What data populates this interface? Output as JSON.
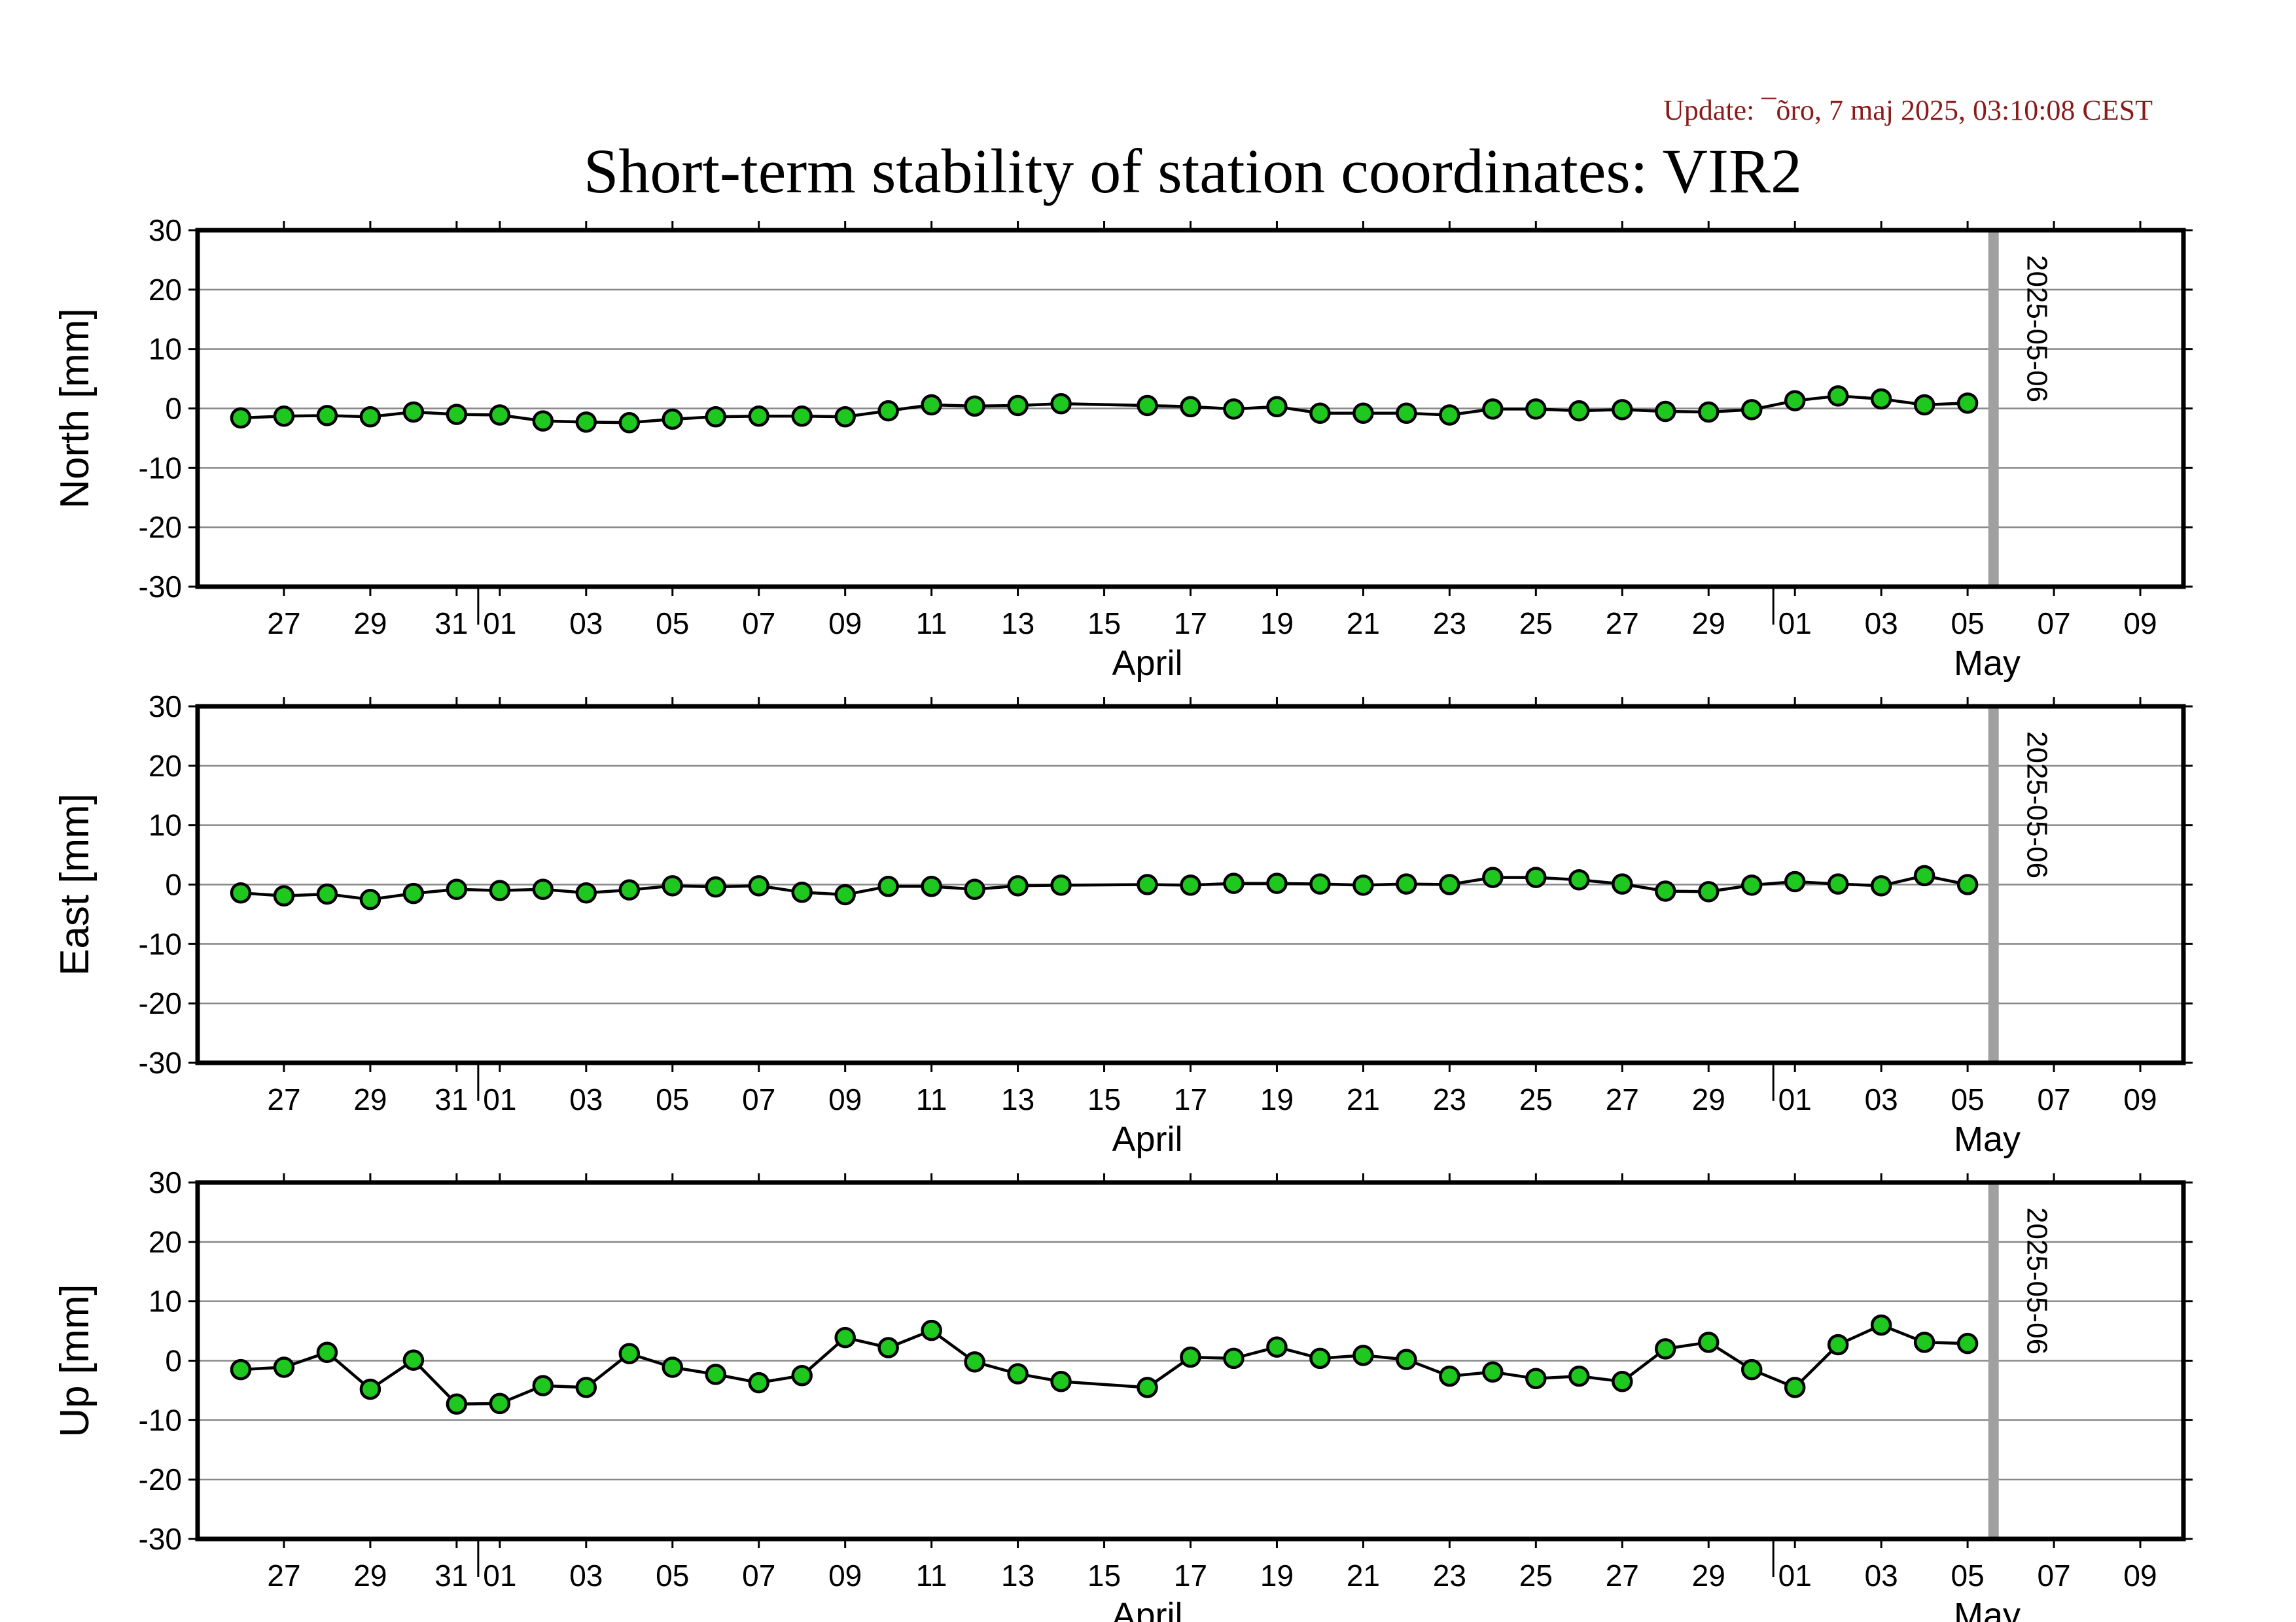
{
  "update_text": "Update: ¯õro, 7 maj 2025, 03:10:08 CEST",
  "title": "Short-term stability of station coordinates: VIR2",
  "colors": {
    "marker_fill": "#1ec81e",
    "reference_line": "#a0a0a0",
    "update_text": "#8b1a1a"
  },
  "chart_data": [
    {
      "type": "line",
      "ylabel": "North [mm]",
      "ylim": [
        -30,
        30
      ],
      "yticks": [
        "30",
        "20",
        "10",
        "0",
        "-10",
        "-20",
        "-30"
      ],
      "xlim": [
        "2025-03-25",
        "2025-05-10"
      ],
      "xtick_labels": [
        "27",
        "29",
        "31",
        "01",
        "03",
        "05",
        "07",
        "09",
        "11",
        "13",
        "15",
        "17",
        "19",
        "21",
        "23",
        "25",
        "27",
        "29",
        "01",
        "03",
        "05",
        "07",
        "09"
      ],
      "month_labels": [
        "April",
        "May"
      ],
      "reference_line": "2025-05-06",
      "grid": true,
      "x": [
        "2025-03-26",
        "2025-03-27",
        "2025-03-28",
        "2025-03-29",
        "2025-03-30",
        "2025-03-31",
        "2025-04-01",
        "2025-04-02",
        "2025-04-03",
        "2025-04-04",
        "2025-04-05",
        "2025-04-06",
        "2025-04-07",
        "2025-04-08",
        "2025-04-09",
        "2025-04-10",
        "2025-04-11",
        "2025-04-12",
        "2025-04-13",
        "2025-04-14",
        "2025-04-16",
        "2025-04-17",
        "2025-04-18",
        "2025-04-19",
        "2025-04-20",
        "2025-04-21",
        "2025-04-22",
        "2025-04-23",
        "2025-04-24",
        "2025-04-25",
        "2025-04-26",
        "2025-04-27",
        "2025-04-28",
        "2025-04-29",
        "2025-04-30",
        "2025-05-01",
        "2025-05-02",
        "2025-05-03",
        "2025-05-04",
        "2025-05-05"
      ],
      "y": [
        -1.6,
        -1.3,
        -1.2,
        -1.4,
        -0.6,
        -1.0,
        -1.1,
        -2.1,
        -2.3,
        -2.4,
        -1.8,
        -1.4,
        -1.3,
        -1.3,
        -1.4,
        -0.4,
        0.6,
        0.4,
        0.5,
        0.8,
        0.5,
        0.3,
        -0.1,
        0.3,
        -0.8,
        -0.8,
        -0.8,
        -1.1,
        -0.1,
        -0.1,
        -0.4,
        -0.2,
        -0.5,
        -0.6,
        -0.2,
        1.3,
        2.1,
        1.6,
        0.6,
        0.9
      ]
    },
    {
      "type": "line",
      "ylabel": "East [mm]",
      "ylim": [
        -30,
        30
      ],
      "yticks": [
        "30",
        "20",
        "10",
        "0",
        "-10",
        "-20",
        "-30"
      ],
      "xlim": [
        "2025-03-25",
        "2025-05-10"
      ],
      "xtick_labels": [
        "27",
        "29",
        "31",
        "01",
        "03",
        "05",
        "07",
        "09",
        "11",
        "13",
        "15",
        "17",
        "19",
        "21",
        "23",
        "25",
        "27",
        "29",
        "01",
        "03",
        "05",
        "07",
        "09"
      ],
      "month_labels": [
        "April",
        "May"
      ],
      "reference_line": "2025-05-06",
      "grid": true,
      "x": [
        "2025-03-26",
        "2025-03-27",
        "2025-03-28",
        "2025-03-29",
        "2025-03-30",
        "2025-03-31",
        "2025-04-01",
        "2025-04-02",
        "2025-04-03",
        "2025-04-04",
        "2025-04-05",
        "2025-04-06",
        "2025-04-07",
        "2025-04-08",
        "2025-04-09",
        "2025-04-10",
        "2025-04-11",
        "2025-04-12",
        "2025-04-13",
        "2025-04-14",
        "2025-04-16",
        "2025-04-17",
        "2025-04-18",
        "2025-04-19",
        "2025-04-20",
        "2025-04-21",
        "2025-04-22",
        "2025-04-23",
        "2025-04-24",
        "2025-04-25",
        "2025-04-26",
        "2025-04-27",
        "2025-04-28",
        "2025-04-29",
        "2025-04-30",
        "2025-05-01",
        "2025-05-02",
        "2025-05-03",
        "2025-05-04",
        "2025-05-05"
      ],
      "y": [
        -1.4,
        -1.9,
        -1.6,
        -2.5,
        -1.5,
        -0.8,
        -1.0,
        -0.8,
        -1.4,
        -0.9,
        -0.2,
        -0.4,
        -0.2,
        -1.3,
        -1.7,
        -0.3,
        -0.3,
        -0.8,
        -0.2,
        -0.1,
        0.0,
        -0.1,
        0.2,
        0.2,
        0.1,
        -0.1,
        0.1,
        0.0,
        1.2,
        1.2,
        0.8,
        0.1,
        -1.1,
        -1.2,
        -0.1,
        0.5,
        0.1,
        -0.2,
        1.5,
        0.0
      ]
    },
    {
      "type": "line",
      "ylabel": "Up [mm]",
      "ylim": [
        -30,
        30
      ],
      "yticks": [
        "30",
        "20",
        "10",
        "0",
        "-10",
        "-20",
        "-30"
      ],
      "xlim": [
        "2025-03-25",
        "2025-05-10"
      ],
      "xtick_labels": [
        "27",
        "29",
        "31",
        "01",
        "03",
        "05",
        "07",
        "09",
        "11",
        "13",
        "15",
        "17",
        "19",
        "21",
        "23",
        "25",
        "27",
        "29",
        "01",
        "03",
        "05",
        "07",
        "09"
      ],
      "month_labels": [
        "April",
        "May"
      ],
      "reference_line": "2025-05-06",
      "grid": true,
      "x": [
        "2025-03-26",
        "2025-03-27",
        "2025-03-28",
        "2025-03-29",
        "2025-03-30",
        "2025-03-31",
        "2025-04-01",
        "2025-04-02",
        "2025-04-03",
        "2025-04-04",
        "2025-04-05",
        "2025-04-06",
        "2025-04-07",
        "2025-04-08",
        "2025-04-09",
        "2025-04-10",
        "2025-04-11",
        "2025-04-12",
        "2025-04-13",
        "2025-04-14",
        "2025-04-16",
        "2025-04-17",
        "2025-04-18",
        "2025-04-19",
        "2025-04-20",
        "2025-04-21",
        "2025-04-22",
        "2025-04-23",
        "2025-04-24",
        "2025-04-25",
        "2025-04-26",
        "2025-04-27",
        "2025-04-28",
        "2025-04-29",
        "2025-04-30",
        "2025-05-01",
        "2025-05-02",
        "2025-05-03",
        "2025-05-04",
        "2025-05-05"
      ],
      "y": [
        -1.5,
        -1.1,
        1.4,
        -4.8,
        0.1,
        -7.3,
        -7.2,
        -4.2,
        -4.5,
        1.2,
        -1.1,
        -2.3,
        -3.7,
        -2.5,
        3.9,
        2.2,
        5.1,
        -0.2,
        -2.2,
        -3.5,
        -4.5,
        0.6,
        0.4,
        2.3,
        0.4,
        0.9,
        0.2,
        -2.6,
        -1.9,
        -3.0,
        -2.6,
        -3.5,
        2.0,
        3.1,
        -1.5,
        -4.5,
        2.7,
        6.0,
        3.1,
        2.9
      ]
    }
  ]
}
